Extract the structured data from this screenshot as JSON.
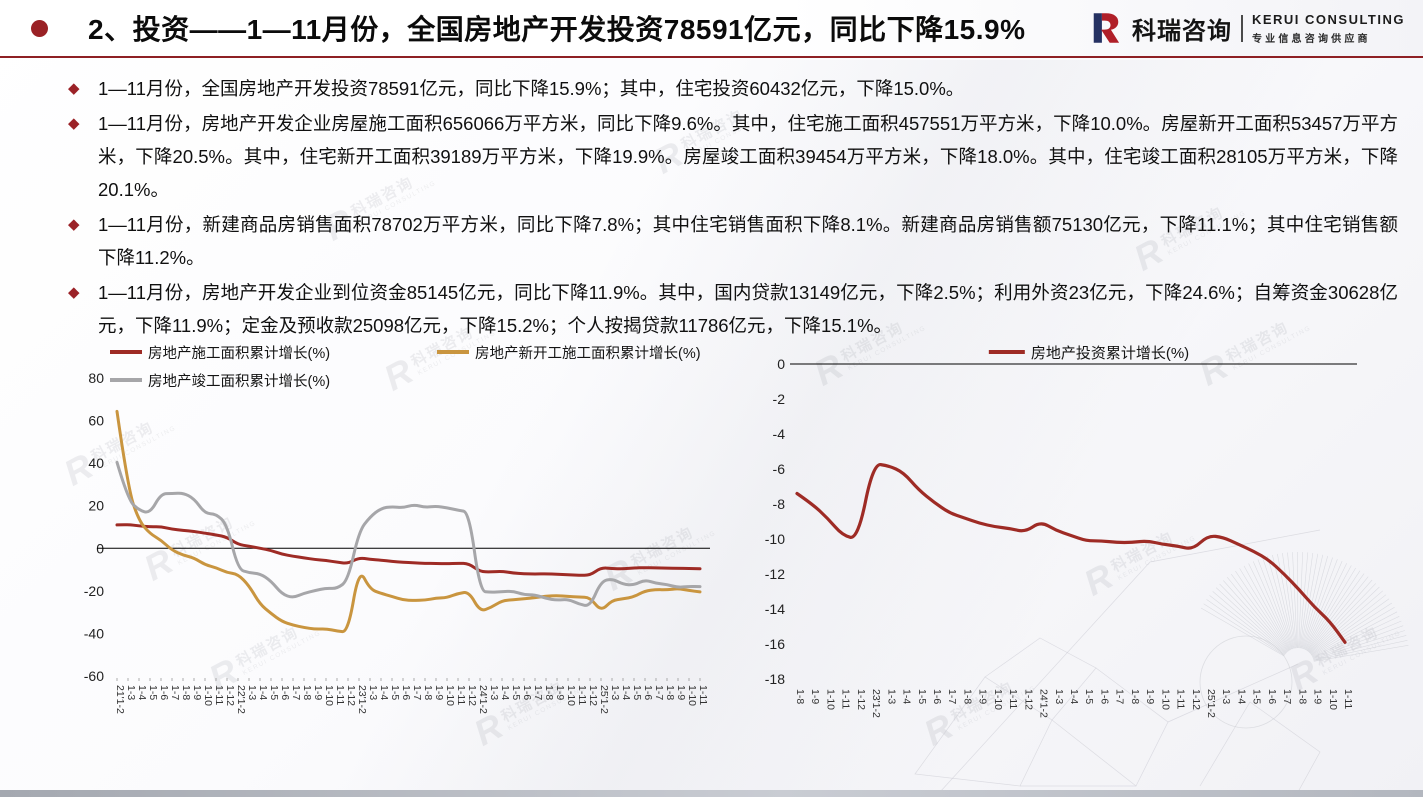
{
  "header": {
    "title": "2、投资——1—11月份，全国房地产开发投资78591亿元，同比下降15.9%",
    "logo": {
      "cn": "科瑞咨询",
      "en": "KERUI CONSULTING",
      "tagline": "专业信息咨询供应商"
    }
  },
  "bullet_marker": "◆",
  "bullets": [
    {
      "text": "1—11月份，全国房地产开发投资78591亿元，同比下降15.9%；其中，住宅投资60432亿元，下降15.0%。"
    },
    {
      "text": "1—11月份，房地产开发企业房屋施工面积656066万平方米，同比下降9.6%。其中，住宅施工面积457551万平方米，下降10.0%。房屋新开工面积53457万平方米，下降20.5%。其中，住宅新开工面积39189万平方米，下降19.9%。房屋竣工面积39454万平方米，下降18.0%。其中，住宅竣工面积28105万平方米，下降20.1%。"
    },
    {
      "text": "1—11月份，新建商品房销售面积78702万平方米，同比下降7.8%；其中住宅销售面积下降8.1%。新建商品房销售额75130亿元，下降11.1%；其中住宅销售额下降11.2%。"
    },
    {
      "text": "1—11月份，房地产开发企业到位资金85145亿元，同比下降11.9%。其中，国内贷款13149亿元，下降2.5%；利用外资23亿元，下降24.6%；自筹资金30628亿元，下降11.9%；定金及预收款25098亿元，下降15.2%；个人按揭贷款11786亿元，下降15.1%。"
    }
  ],
  "watermark": {
    "cn": "科瑞咨询",
    "en": "KERUI CONSULTING"
  },
  "colors": {
    "accent_red": "#9a2125",
    "line_red": "#9e2b25",
    "line_gold": "#c9953f",
    "line_gray": "#a6a6a9"
  },
  "chart_data": [
    {
      "type": "line",
      "title": "",
      "categories": [
        "21'1-2",
        "1-3",
        "1-4",
        "1-5",
        "1-6",
        "1-7",
        "1-8",
        "1-9",
        "1-10",
        "1-11",
        "1-12",
        "22'1-2",
        "1-3",
        "1-4",
        "1-5",
        "1-6",
        "1-7",
        "1-8",
        "1-9",
        "1-10",
        "1-11",
        "1-12",
        "23'1-2",
        "1-3",
        "1-4",
        "1-5",
        "1-6",
        "1-7",
        "1-8",
        "1-9",
        "1-10",
        "1-11",
        "1-12",
        "24'1-2",
        "1-3",
        "1-4",
        "1-5",
        "1-6",
        "1-7",
        "1-8",
        "1-9",
        "1-10",
        "1-11",
        "1-12",
        "25'1-2",
        "1-3",
        "1-4",
        "1-5",
        "1-6",
        "1-7",
        "1-8",
        "1-9",
        "1-10",
        "1-11"
      ],
      "series": [
        {
          "name": "房地产施工面积累计增长(%)",
          "color": "#9e2b25",
          "values": [
            11.0,
            11.2,
            10.5,
            10.1,
            10.2,
            9.0,
            8.4,
            7.9,
            7.1,
            6.3,
            5.2,
            1.8,
            1.0,
            0.0,
            -1.0,
            -2.8,
            -3.7,
            -4.5,
            -5.3,
            -5.7,
            -6.5,
            -7.2,
            -4.4,
            -5.2,
            -5.6,
            -6.2,
            -6.6,
            -6.8,
            -7.1,
            -7.1,
            -7.3,
            -7.0,
            -7.2,
            -11.0,
            -11.1,
            -10.8,
            -11.6,
            -12.0,
            -12.1,
            -12.0,
            -12.2,
            -12.4,
            -12.7,
            -12.7,
            -9.1,
            -9.5,
            -9.7,
            -9.2,
            -9.1,
            -9.2,
            -9.3,
            -9.4,
            -9.5,
            -9.6
          ]
        },
        {
          "name": "房地产新开工施工面积累计增长(%)",
          "color": "#c9953f",
          "values": [
            64.3,
            28.2,
            12.8,
            6.9,
            3.8,
            -0.9,
            -3.2,
            -4.5,
            -7.7,
            -9.1,
            -11.4,
            -12.2,
            -17.5,
            -26.3,
            -30.6,
            -34.4,
            -36.1,
            -37.2,
            -38.0,
            -37.8,
            -38.9,
            -39.4,
            -9.4,
            -19.2,
            -21.2,
            -22.6,
            -24.3,
            -24.5,
            -24.4,
            -23.4,
            -23.2,
            -21.2,
            -20.4,
            -29.7,
            -27.8,
            -24.6,
            -24.2,
            -23.7,
            -23.2,
            -22.5,
            -22.2,
            -22.6,
            -23.0,
            -23.0,
            -29.6,
            -24.4,
            -23.8,
            -22.8,
            -20.0,
            -19.4,
            -19.5,
            -18.9,
            -19.8,
            -20.5
          ]
        },
        {
          "name": "房地产竣工面积累计增长(%)",
          "color": "#a6a6a9",
          "values": [
            40.4,
            22.9,
            17.9,
            16.4,
            25.7,
            25.7,
            26.0,
            23.4,
            16.3,
            16.2,
            11.2,
            -9.8,
            -11.5,
            -11.9,
            -15.3,
            -21.5,
            -23.3,
            -21.1,
            -19.9,
            -18.7,
            -19.0,
            -15.0,
            8.0,
            14.7,
            18.8,
            19.6,
            19.0,
            20.5,
            19.2,
            19.8,
            19.0,
            17.9,
            17.0,
            -20.2,
            -20.7,
            -20.4,
            -20.1,
            -21.8,
            -21.8,
            -23.6,
            -24.4,
            -23.9,
            -26.2,
            -27.4,
            -15.6,
            -14.3,
            -16.9,
            -17.3,
            -14.8,
            -16.5,
            -17.0,
            -18.4,
            -17.9,
            -18.0
          ]
        }
      ],
      "ylim": [
        -60,
        80
      ],
      "yticks": [
        80,
        60,
        40,
        20,
        0,
        -20,
        -40,
        -60
      ],
      "grid": false,
      "zero_line": true,
      "legend_position": "top-left-two-column",
      "x_label_rotation": 90
    },
    {
      "type": "line",
      "title": "",
      "categories": [
        "1-8",
        "1-9",
        "1-10",
        "1-11",
        "1-12",
        "23'1-2",
        "1-3",
        "1-4",
        "1-5",
        "1-6",
        "1-7",
        "1-8",
        "1-9",
        "1-10",
        "1-11",
        "1-12",
        "24'1-2",
        "1-3",
        "1-4",
        "1-5",
        "1-6",
        "1-7",
        "1-8",
        "1-9",
        "1-10",
        "1-11",
        "1-12",
        "25'1-2",
        "1-3",
        "1-4",
        "1-5",
        "1-6",
        "1-7",
        "1-8",
        "1-9",
        "1-10",
        "1-11"
      ],
      "series": [
        {
          "name": "房地产投资累计增长(%)",
          "color": "#9e2b25",
          "values": [
            -7.4,
            -8.0,
            -8.8,
            -9.8,
            -10.0,
            -5.7,
            -5.8,
            -6.2,
            -7.2,
            -7.9,
            -8.5,
            -8.8,
            -9.1,
            -9.3,
            -9.4,
            -9.6,
            -9.0,
            -9.5,
            -9.8,
            -10.1,
            -10.1,
            -10.2,
            -10.2,
            -10.1,
            -10.3,
            -10.4,
            -10.6,
            -9.8,
            -9.9,
            -10.3,
            -10.7,
            -11.2,
            -12.0,
            -12.9,
            -13.9,
            -14.7,
            -15.9
          ]
        }
      ],
      "ylim": [
        -18,
        0
      ],
      "yticks": [
        0,
        -2,
        -4,
        -6,
        -8,
        -10,
        -12,
        -14,
        -16,
        -18
      ],
      "grid": false,
      "zero_line": true,
      "legend_position": "top-center",
      "x_label_rotation": 90
    }
  ]
}
